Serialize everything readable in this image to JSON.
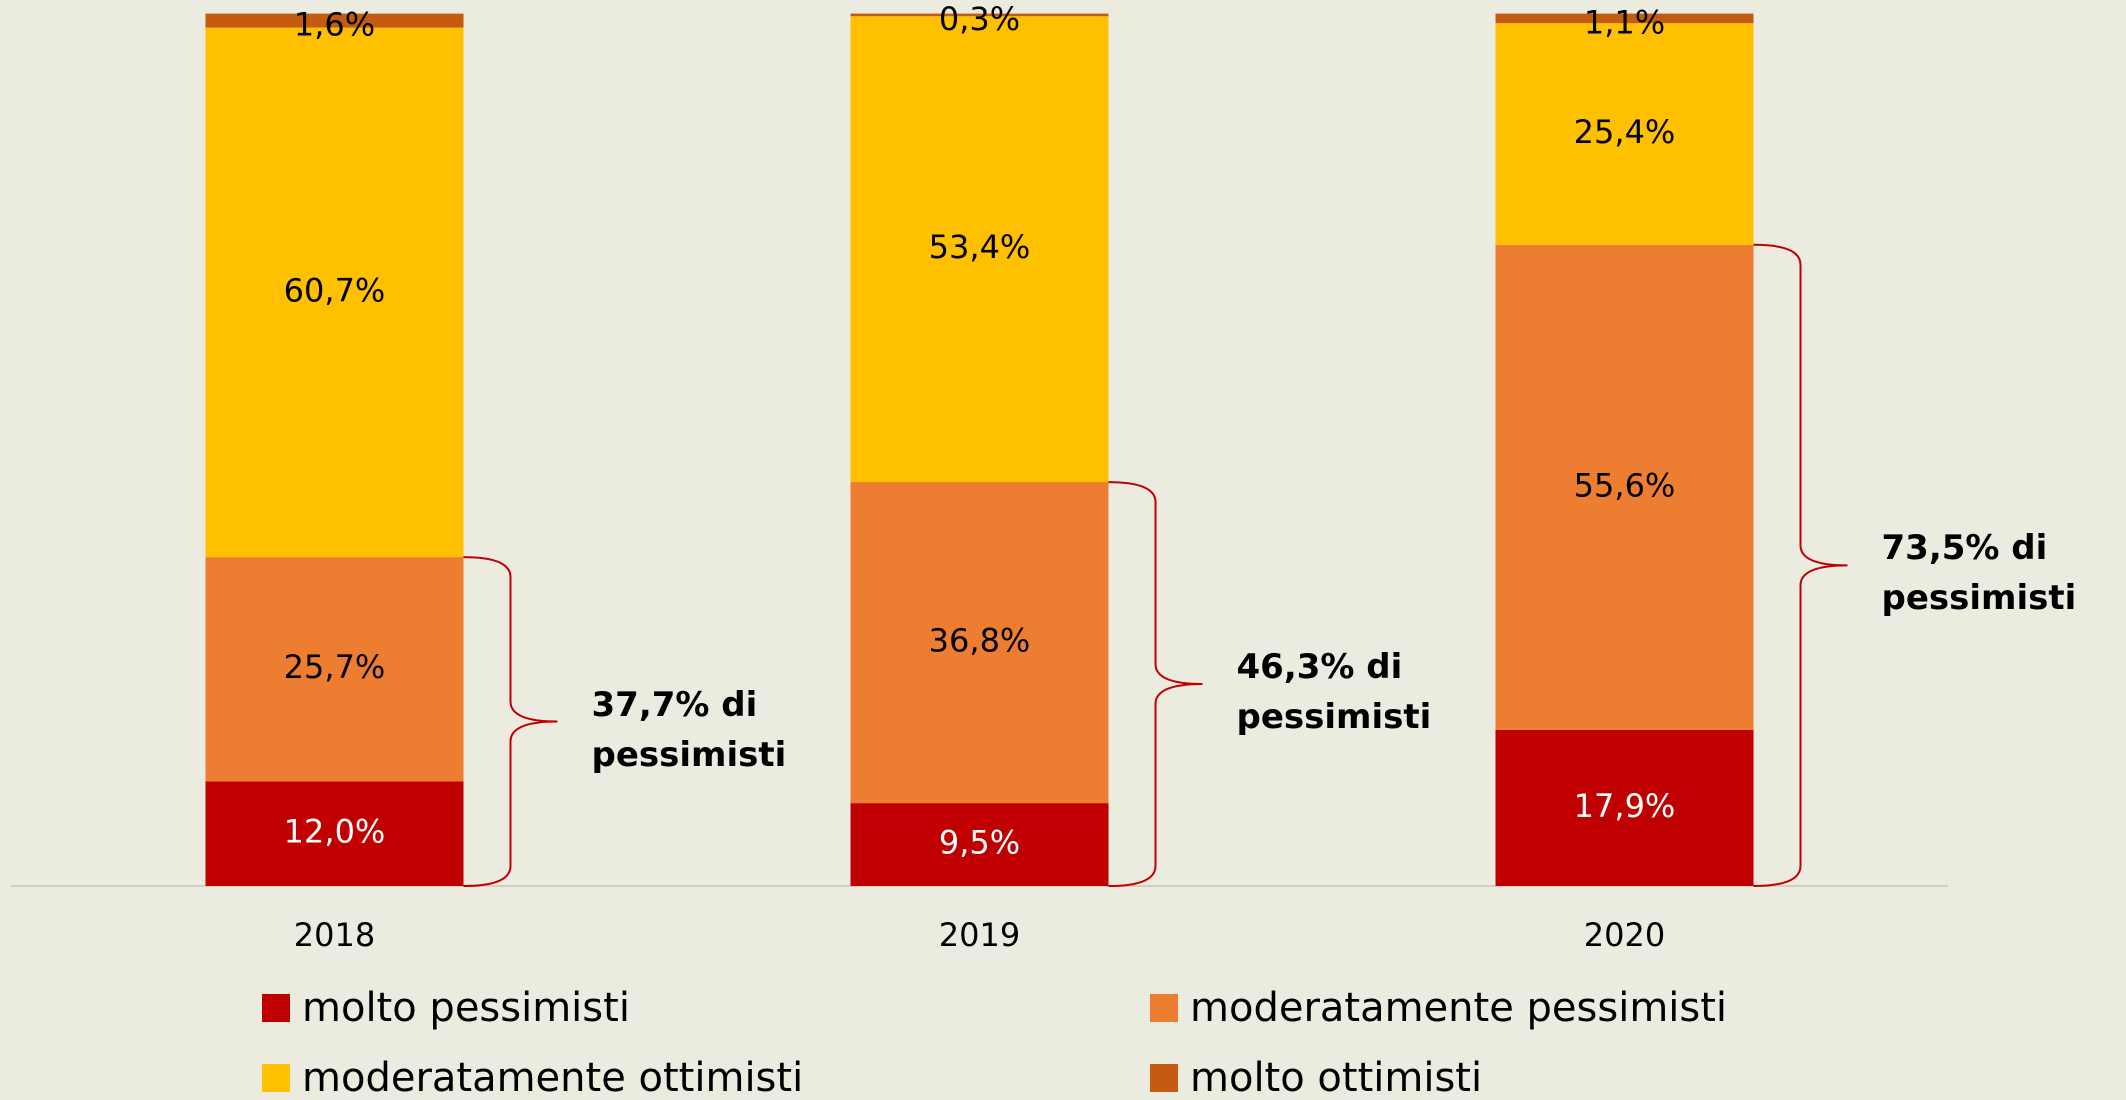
{
  "chart_data": {
    "type": "stacked_bar",
    "categories": [
      "2018",
      "2019",
      "2020"
    ],
    "ylim": [
      0,
      100
    ],
    "series": [
      {
        "name": "molto pessimisti",
        "color": "#c00000",
        "values": [
          12.0,
          9.5,
          17.9
        ],
        "value_labels": [
          "12,0%",
          "9,5%",
          "17,9%"
        ]
      },
      {
        "name": "moderatamente pessimisti",
        "color": "#ed7d31",
        "values": [
          25.7,
          36.8,
          55.6
        ],
        "value_labels": [
          "25,7%",
          "36,8%",
          "55,6%"
        ]
      },
      {
        "name": "moderatamente ottimisti",
        "color": "#ffc000",
        "values": [
          60.7,
          53.4,
          25.4
        ],
        "value_labels": [
          "60,7%",
          "53,4%",
          "25,4%"
        ]
      },
      {
        "name": "molto ottimisti",
        "color": "#c55a11",
        "values": [
          1.6,
          0.3,
          1.1
        ],
        "value_labels": [
          "1,6%",
          "0,3%",
          "1,1%"
        ]
      }
    ],
    "annotations": [
      "37,7% di pessimisti",
      "46,3% di pessimisti",
      "73,5% di pessimisti"
    ]
  }
}
